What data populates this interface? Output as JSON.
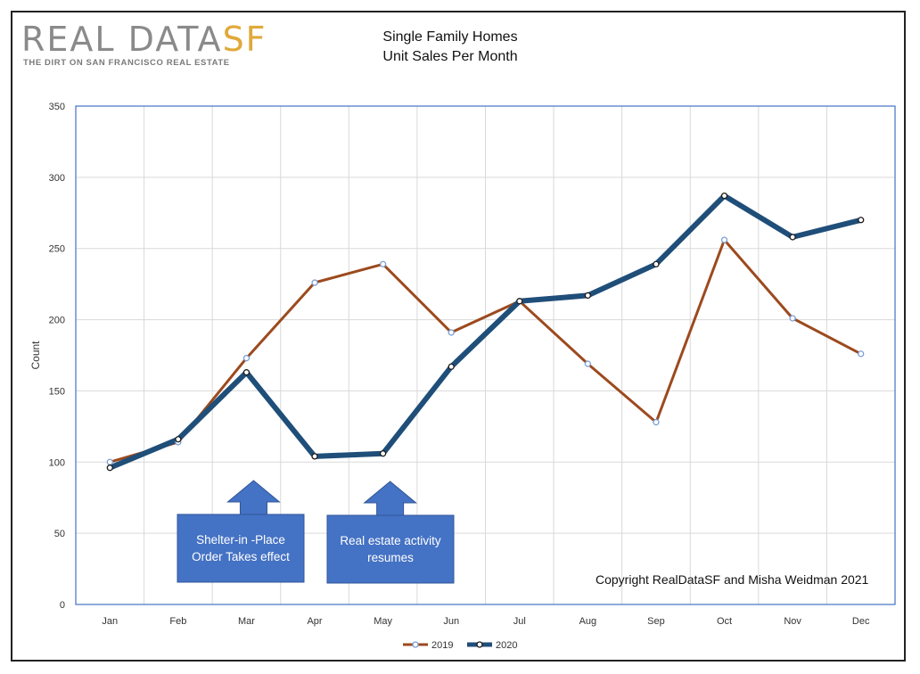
{
  "logo": {
    "main": "REAL DATA",
    "accent": "SF",
    "tagline": "THE DIRT ON SAN FRANCISCO REAL ESTATE"
  },
  "title_line1": "Single Family Homes",
  "title_line2": "Unit Sales Per Month",
  "copyright": "Copyright RealDataSF and Misha Weidman 2021",
  "annotations": [
    {
      "text": "Shelter-in -Place Order Takes effect",
      "month": "Mar"
    },
    {
      "text": "Real estate activity resumes",
      "month": "May"
    }
  ],
  "colors": {
    "series_2019": "#9c4a1e",
    "series_2020": "#1f4e79",
    "annotation_box": "#4472c4",
    "marker_fill": "#ffffff",
    "marker_2019_edge": "#7a9fd6",
    "plot_border": "#4472c4",
    "grid": "#d9d9d9"
  },
  "chart_data": {
    "type": "line",
    "title": "",
    "xlabel": "",
    "ylabel": "Count",
    "ylim": [
      0,
      350
    ],
    "yticks": [
      0,
      50,
      100,
      150,
      200,
      250,
      300,
      350
    ],
    "grid": true,
    "legend_placement": "bottom",
    "categories": [
      "Jan",
      "Feb",
      "Mar",
      "Apr",
      "May",
      "Jun",
      "Jul",
      "Aug",
      "Sep",
      "Oct",
      "Nov",
      "Dec"
    ],
    "series": [
      {
        "name": "2019",
        "values": [
          100,
          114,
          173,
          226,
          239,
          191,
          213,
          169,
          128,
          256,
          201,
          176
        ]
      },
      {
        "name": "2020",
        "values": [
          96,
          116,
          163,
          104,
          106,
          167,
          213,
          217,
          239,
          287,
          258,
          270
        ]
      }
    ]
  }
}
